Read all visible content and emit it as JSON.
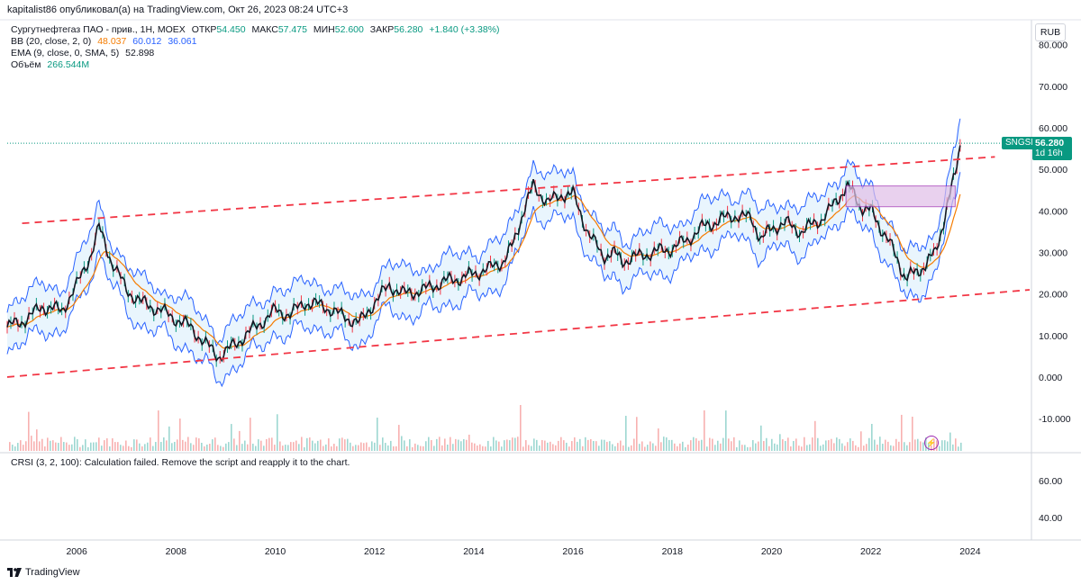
{
  "header": {
    "published": "kapitalist86 опубликовал(а) на TradingView.com, Окт 26, 2023 08:24 UTC+3"
  },
  "legend": {
    "symbol": "Сургутнефтегаз ПАО - прив., 1Н, MOEX",
    "open_label": "ОТКР",
    "open": "54.450",
    "high_label": "МАКС",
    "high": "57.475",
    "low_label": "МИН",
    "low": "52.600",
    "close_label": "ЗАКР",
    "close": "56.280",
    "change": "+1.840 (+3.38%)",
    "bb_label": "BB (20, close, 2, 0)",
    "bb_basis": "48.037",
    "bb_upper": "60.012",
    "bb_lower": "36.061",
    "ema_label": "EMA (9, close, 0, SMA, 5)",
    "ema_value": "52.898",
    "volume_label": "Объём",
    "volume_value": "266.544M"
  },
  "rsi_note": "CRSI (3, 2, 100): Calculation failed. Remove the script and reapply it to the chart.",
  "currency": "RUB",
  "price_tag": {
    "ticker": "SNGSP",
    "price": "56.280",
    "countdown": "1d 16h"
  },
  "brand": "TradingView",
  "colors": {
    "price_line": "#131722",
    "ema": "#f57c00",
    "bb": "#2962ff",
    "bb_fill": "#e3f2fd",
    "channel": "#f23645",
    "up": "#089981",
    "down": "#f23645",
    "zone": "#e1bee7"
  },
  "chart_data": {
    "type": "line",
    "title": "",
    "y_ticks": [
      "80.000",
      "70.000",
      "60.000",
      "50.000",
      "40.000",
      "30.000",
      "20.000",
      "10.000",
      "0.000",
      "-10.000"
    ],
    "rsi_ticks": [
      "60.00",
      "40.00"
    ],
    "x_ticks": [
      "2006",
      "2008",
      "2010",
      "2012",
      "2014",
      "2016",
      "2018",
      "2020",
      "2022",
      "2024"
    ],
    "ylim": [
      -18,
      86
    ],
    "xlim": [
      2004.6,
      2025.2
    ],
    "series": [
      {
        "name": "Сургутнефтегаз ПАО - прив.",
        "x": [
          2004.6,
          2005.0,
          2005.3,
          2005.7,
          2006.0,
          2006.3,
          2006.45,
          2006.7,
          2007.0,
          2007.3,
          2007.7,
          2008.0,
          2008.3,
          2008.6,
          2008.85,
          2009.0,
          2009.3,
          2009.7,
          2010.0,
          2010.3,
          2010.6,
          2011.0,
          2011.3,
          2011.7,
          2012.0,
          2012.3,
          2012.6,
          2013.0,
          2013.4,
          2013.8,
          2014.0,
          2014.3,
          2014.6,
          2014.8,
          2015.0,
          2015.2,
          2015.5,
          2015.8,
          2016.0,
          2016.3,
          2016.6,
          2016.8,
          2017.0,
          2017.3,
          2017.6,
          2018.0,
          2018.3,
          2018.6,
          2019.0,
          2019.3,
          2019.6,
          2019.8,
          2020.0,
          2020.3,
          2020.6,
          2021.0,
          2021.3,
          2021.5,
          2021.6,
          2021.8,
          2022.0,
          2022.2,
          2022.35,
          2022.5,
          2022.7,
          2022.9,
          2023.1,
          2023.3,
          2023.5,
          2023.7,
          2023.8
        ],
        "values": [
          12,
          14,
          17,
          16,
          22,
          30,
          36,
          28,
          21,
          18,
          16,
          14,
          12,
          8,
          5,
          6,
          9,
          13,
          16,
          15,
          18,
          17,
          15,
          13,
          18,
          22,
          20,
          21,
          23,
          24,
          25,
          26,
          28,
          32,
          40,
          46,
          42,
          44,
          44,
          35,
          29,
          30,
          28,
          29,
          30,
          31,
          33,
          36,
          38,
          39,
          38,
          33,
          36,
          37,
          35,
          38,
          42,
          46,
          45,
          41,
          40,
          36,
          33,
          29,
          24,
          25,
          27,
          30,
          39,
          49,
          56.28
        ]
      }
    ],
    "channel_upper": {
      "x": [
        2004.9,
        2024.5
      ],
      "values": [
        37,
        53
      ]
    },
    "channel_lower": {
      "x": [
        2004.6,
        2025.2
      ],
      "values": [
        0,
        21
      ]
    },
    "zone": {
      "x": [
        2021.5,
        2023.7
      ],
      "values": [
        41,
        46
      ]
    }
  }
}
